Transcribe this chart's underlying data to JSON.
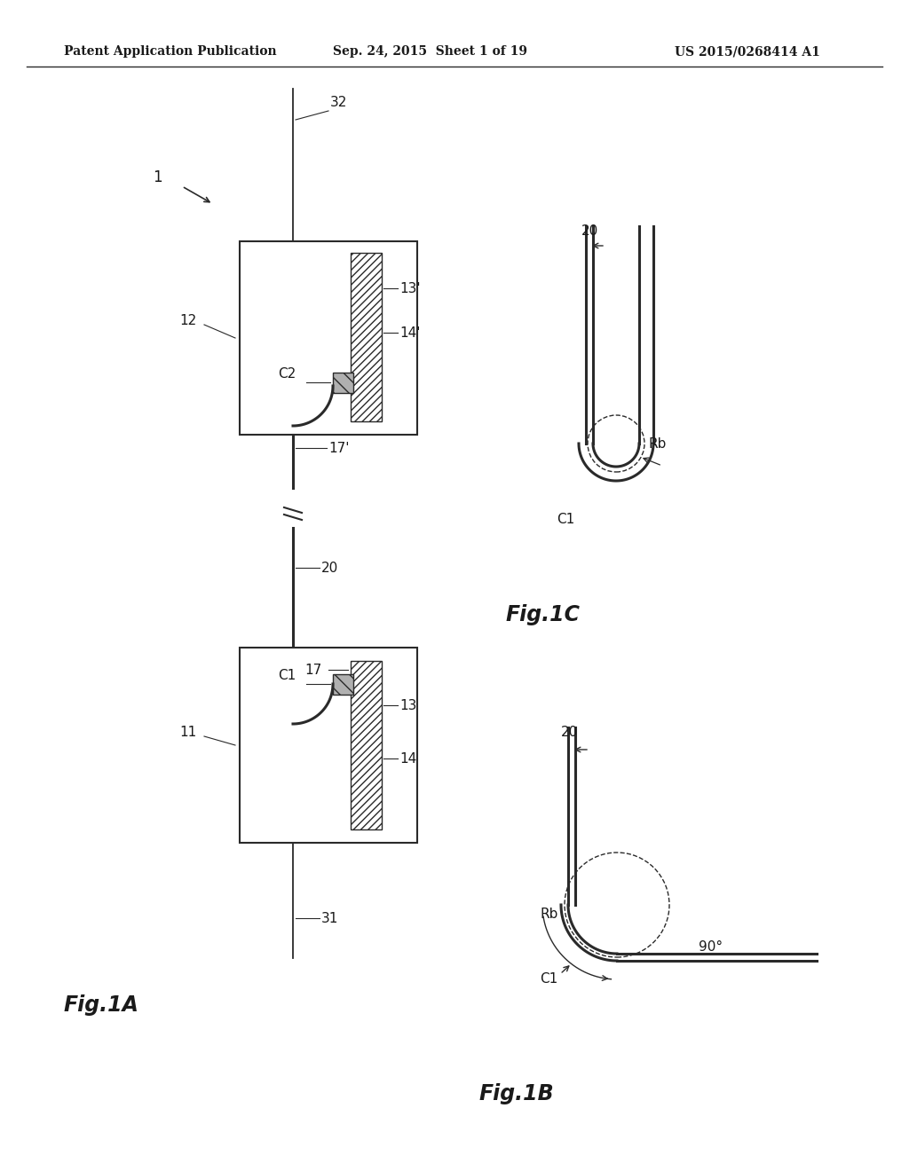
{
  "bg_color": "#ffffff",
  "header_line1": "Patent Application Publication",
  "header_line2": "Sep. 24, 2015  Sheet 1 of 19",
  "header_line3": "US 2015/0268414 A1",
  "fig1A_label": "Fig.1A",
  "fig1B_label": "Fig.1B",
  "fig1C_label": "Fig.1C",
  "line_color": "#2a2a2a",
  "text_color": "#1a1a1a"
}
